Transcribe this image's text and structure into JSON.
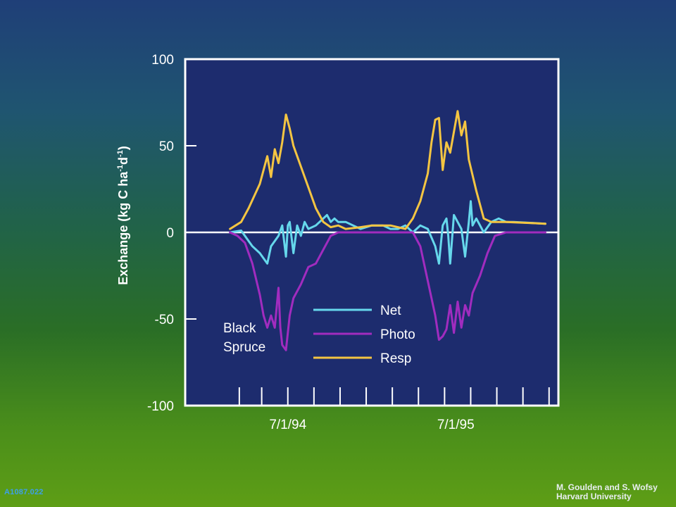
{
  "chart_data": {
    "type": "line",
    "title": "",
    "ylabel": "Exchange (kg C ha-1d-1)",
    "ylabel_parts": {
      "pre": "Exchange (kg C ha",
      "exp1": "-1",
      "mid": "d",
      "exp2": "-1",
      "post": ")"
    },
    "xlabel": "",
    "ylim": [
      -100,
      100
    ],
    "yticks": [
      "100",
      "50",
      "0",
      "-50",
      "-100"
    ],
    "xlim": [
      0,
      100
    ],
    "xtick_positions": [
      14.5,
      20.5,
      27.5,
      34.5,
      41.5,
      48.5,
      55.5,
      62.5,
      69.5,
      76.5,
      83.5,
      90.5,
      97.5
    ],
    "xtick_labels": [
      {
        "label": "7/1/94",
        "x": 27.5
      },
      {
        "label": "7/1/95",
        "x": 72.5
      }
    ],
    "annotation": "Black Spruce",
    "annotation_lines": [
      "Black",
      "Spruce"
    ],
    "legend_position": "bottom-right",
    "zero_line": true,
    "series": [
      {
        "name": "Net",
        "color": "#66d8ec",
        "x": [
          12,
          15,
          18,
          20,
          22,
          23,
          25,
          26,
          27,
          27.5,
          28,
          29,
          30,
          31,
          32,
          33,
          35,
          37,
          38,
          39,
          40,
          41,
          43,
          45,
          47,
          50,
          53,
          55,
          57,
          59,
          61,
          63,
          65,
          67,
          68,
          69,
          70,
          70.5,
          71,
          72,
          73,
          74,
          75,
          76,
          76.5,
          77,
          78,
          80,
          82,
          84,
          86,
          88,
          96.5
        ],
        "y": [
          0,
          1,
          -8,
          -12,
          -18,
          -8,
          -2,
          4,
          -14,
          4,
          6,
          -12,
          4,
          -2,
          6,
          2,
          4,
          8,
          10,
          6,
          8,
          6,
          6,
          4,
          2,
          4,
          4,
          2,
          2,
          4,
          0,
          4,
          2,
          -8,
          -18,
          4,
          8,
          -2,
          -18,
          10,
          6,
          2,
          -14,
          6,
          18,
          4,
          8,
          0,
          6,
          8,
          6,
          6,
          5
        ]
      },
      {
        "name": "Photo",
        "color": "#a12cbf",
        "x": [
          12,
          14,
          16,
          18,
          20,
          21,
          22,
          23,
          24,
          25,
          25.5,
          26,
          27,
          28,
          29,
          31,
          33,
          35,
          37,
          39,
          41,
          43,
          45,
          50,
          55,
          59,
          61,
          63,
          65,
          67,
          68,
          69,
          70,
          71,
          72,
          73,
          74,
          75,
          76,
          77,
          79,
          81,
          83,
          86,
          90,
          96.5
        ],
        "y": [
          0,
          -2,
          -6,
          -18,
          -36,
          -48,
          -55,
          -48,
          -55,
          -32,
          -55,
          -65,
          -68,
          -48,
          -38,
          -30,
          -20,
          -18,
          -10,
          -2,
          0,
          0,
          0,
          0,
          0,
          0,
          0,
          -8,
          -28,
          -48,
          -62,
          -60,
          -56,
          -42,
          -58,
          -40,
          -55,
          -42,
          -48,
          -35,
          -25,
          -12,
          -2,
          0,
          0,
          0
        ]
      },
      {
        "name": "Resp",
        "color": "#f4c542",
        "x": [
          12,
          15,
          17,
          20,
          22,
          23,
          24,
          25,
          26,
          27,
          28,
          29,
          30,
          31,
          33,
          35,
          37,
          39,
          41,
          43,
          47,
          50,
          55,
          59,
          61,
          63,
          65,
          66,
          67,
          68,
          69,
          70,
          71,
          72,
          73,
          74,
          75,
          76,
          78,
          80,
          82,
          86,
          96.5
        ],
        "y": [
          2,
          6,
          14,
          28,
          44,
          32,
          48,
          40,
          52,
          68,
          60,
          50,
          44,
          38,
          26,
          14,
          6,
          3,
          4,
          2,
          3,
          4,
          4,
          2,
          8,
          18,
          34,
          52,
          65,
          66,
          36,
          52,
          46,
          58,
          70,
          56,
          64,
          42,
          24,
          8,
          6,
          6,
          5
        ]
      }
    ]
  },
  "credit_lines": [
    "M. Goulden and S. Wofsy",
    "Harvard University"
  ],
  "corner_code": "A1087.022",
  "colors": {
    "plot_bg": "#1d2c6e",
    "frame": "#ffffff",
    "text": "#ffffff"
  }
}
